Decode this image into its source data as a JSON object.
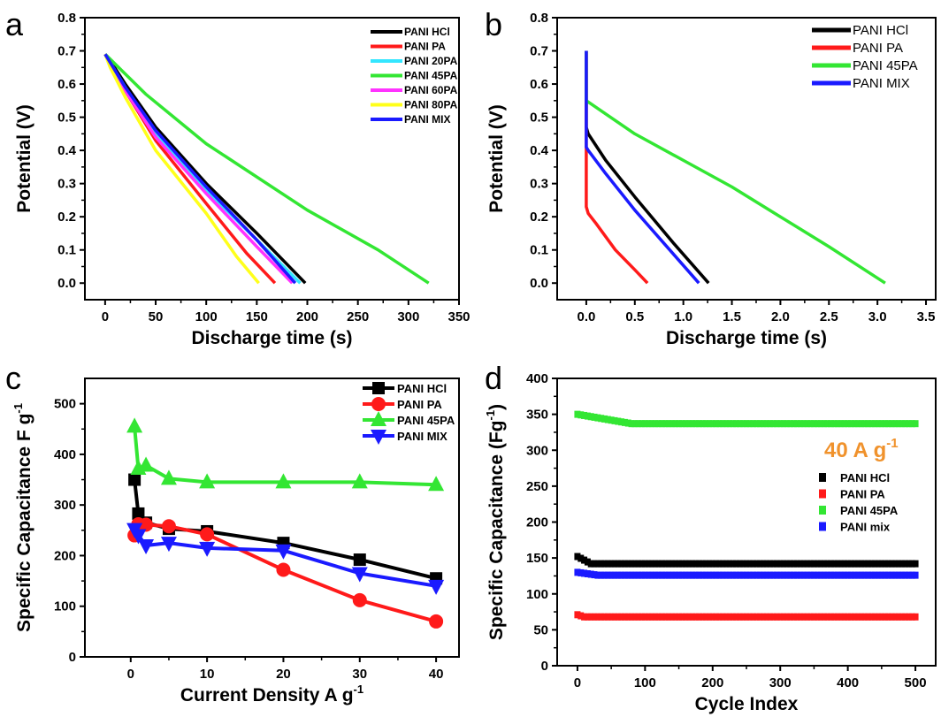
{
  "panel_labels": [
    "a",
    "b",
    "c",
    "d"
  ],
  "colors": {
    "PANI HCl": "#000000",
    "PANI PA": "#ff1a1a",
    "PANI 20PA": "#33e6ff",
    "PANI 45PA": "#33e633",
    "PANI 60PA": "#ff33ff",
    "PANI 80PA": "#ffff1a",
    "PANI MIX": "#1a1aff",
    "annotation": "#f0922c"
  },
  "chart_data": [
    {
      "id": "a",
      "type": "line",
      "xlabel": "Discharge time (s)",
      "ylabel": "Potential (V)",
      "xlim": [
        -20,
        350
      ],
      "ylim": [
        -0.05,
        0.8
      ],
      "xticks": [
        0,
        50,
        100,
        150,
        200,
        250,
        300,
        350
      ],
      "yticks": [
        0.0,
        0.1,
        0.2,
        0.3,
        0.4,
        0.5,
        0.6,
        0.7,
        0.8
      ],
      "legend": "top-right",
      "series": [
        {
          "name": "PANI HCl",
          "x": [
            0,
            5,
            20,
            50,
            100,
            150,
            198
          ],
          "y": [
            0.69,
            0.67,
            0.6,
            0.47,
            0.3,
            0.15,
            0.0
          ]
        },
        {
          "name": "PANI PA",
          "x": [
            0,
            5,
            20,
            50,
            100,
            140,
            168
          ],
          "y": [
            0.69,
            0.66,
            0.58,
            0.43,
            0.24,
            0.09,
            0.0
          ]
        },
        {
          "name": "PANI 20PA",
          "x": [
            0,
            5,
            20,
            50,
            100,
            150,
            193
          ],
          "y": [
            0.69,
            0.665,
            0.59,
            0.45,
            0.28,
            0.13,
            0.0
          ]
        },
        {
          "name": "PANI 45PA",
          "x": [
            0,
            10,
            40,
            100,
            200,
            270,
            320
          ],
          "y": [
            0.69,
            0.66,
            0.57,
            0.42,
            0.22,
            0.1,
            0.0
          ]
        },
        {
          "name": "PANI 60PA",
          "x": [
            0,
            5,
            20,
            50,
            100,
            150,
            185
          ],
          "y": [
            0.69,
            0.66,
            0.58,
            0.44,
            0.27,
            0.11,
            0.0
          ]
        },
        {
          "name": "PANI 80PA",
          "x": [
            0,
            5,
            20,
            50,
            100,
            130,
            152
          ],
          "y": [
            0.69,
            0.65,
            0.56,
            0.4,
            0.21,
            0.08,
            0.0
          ]
        },
        {
          "name": "PANI MIX",
          "x": [
            0,
            5,
            20,
            50,
            100,
            150,
            188
          ],
          "y": [
            0.69,
            0.665,
            0.59,
            0.46,
            0.29,
            0.13,
            0.0
          ]
        }
      ],
      "legend_labels": [
        "PANI HCl",
        "PANI PA",
        "PANI 20PA",
        "PANI 45PA",
        "PANI 60PA",
        "PANI 80PA",
        "PANI MIX"
      ]
    },
    {
      "id": "b",
      "type": "line",
      "xlabel": "Discharge time (s)",
      "ylabel": "Potential (V)",
      "xlim": [
        -0.3,
        3.6
      ],
      "ylim": [
        -0.05,
        0.8
      ],
      "xticks": [
        0.0,
        0.5,
        1.0,
        1.5,
        2.0,
        2.5,
        3.0,
        3.5
      ],
      "yticks": [
        0.0,
        0.1,
        0.2,
        0.3,
        0.4,
        0.5,
        0.6,
        0.7,
        0.8
      ],
      "legend": "top-right",
      "series": [
        {
          "name": "PANI HCl",
          "x": [
            0,
            0,
            0.02,
            0.2,
            0.5,
            0.9,
            1.26
          ],
          "y": [
            0.7,
            0.47,
            0.45,
            0.37,
            0.26,
            0.12,
            0.0
          ]
        },
        {
          "name": "PANI PA",
          "x": [
            0,
            0,
            0.02,
            0.1,
            0.3,
            0.5,
            0.63
          ],
          "y": [
            0.7,
            0.23,
            0.21,
            0.18,
            0.1,
            0.04,
            0.0
          ]
        },
        {
          "name": "PANI 45PA",
          "x": [
            0,
            0,
            0.05,
            0.5,
            1.0,
            1.5,
            2.0,
            2.5,
            3.08
          ],
          "y": [
            0.7,
            0.55,
            0.54,
            0.45,
            0.37,
            0.29,
            0.2,
            0.11,
            0.0
          ]
        },
        {
          "name": "PANI MIX",
          "x": [
            0,
            0,
            0.02,
            0.2,
            0.5,
            0.8,
            1.16
          ],
          "y": [
            0.7,
            0.41,
            0.4,
            0.33,
            0.22,
            0.12,
            0.0
          ]
        }
      ],
      "legend_labels": [
        "PANI HCl",
        "PANI PA",
        "PANI 45PA",
        "PANI MIX"
      ]
    },
    {
      "id": "c",
      "type": "line",
      "xlabel": "Current Density A g",
      "xlabel_sup": "-1",
      "ylabel": "Specific Capacitance F g",
      "ylabel_sup": "-1",
      "xlim": [
        -6,
        43
      ],
      "ylim": [
        0,
        550
      ],
      "xticks": [
        0,
        10,
        20,
        30,
        40
      ],
      "yticks": [
        0,
        100,
        200,
        300,
        400,
        500
      ],
      "legend": "top-right",
      "markers": {
        "PANI HCl": "square",
        "PANI PA": "circle",
        "PANI 45PA": "triangle-up",
        "PANI MIX": "triangle-down"
      },
      "series": [
        {
          "name": "PANI HCl",
          "x": [
            0.5,
            1,
            2,
            5,
            10,
            20,
            30,
            40
          ],
          "y": [
            350,
            283,
            265,
            253,
            248,
            225,
            192,
            155
          ]
        },
        {
          "name": "PANI PA",
          "x": [
            0.5,
            1,
            2,
            5,
            10,
            20,
            30,
            40
          ],
          "y": [
            240,
            262,
            261,
            258,
            242,
            172,
            112,
            70
          ]
        },
        {
          "name": "PANI 45PA",
          "x": [
            0.5,
            1,
            2,
            5,
            10,
            20,
            30,
            40
          ],
          "y": [
            455,
            372,
            378,
            352,
            345,
            345,
            345,
            340
          ]
        },
        {
          "name": "PANI MIX",
          "x": [
            0.5,
            1,
            2,
            5,
            10,
            20,
            30,
            40
          ],
          "y": [
            252,
            240,
            220,
            225,
            215,
            210,
            165,
            140
          ]
        }
      ],
      "legend_labels": [
        "PANI HCl",
        "PANI PA",
        "PANI 45PA",
        "PANI MIX"
      ]
    },
    {
      "id": "d",
      "type": "scatter",
      "xlabel": "Cycle Index",
      "ylabel": "Specific Capacitance (Fg",
      "ylabel_sup": "-1",
      "ylabel_tail": ")",
      "xlim": [
        -30,
        530
      ],
      "ylim": [
        0,
        400
      ],
      "xticks": [
        0,
        100,
        200,
        300,
        400,
        500
      ],
      "yticks": [
        0,
        50,
        100,
        150,
        200,
        250,
        300,
        350,
        400
      ],
      "annotation": "40 A g",
      "annotation_sup": "-1",
      "legend": "right",
      "series": [
        {
          "name": "PANI HCl",
          "start": 152,
          "settle": 142,
          "settle_at": 20
        },
        {
          "name": "PANI PA",
          "start": 71,
          "settle": 68,
          "settle_at": 10
        },
        {
          "name": "PANI 45PA",
          "start": 350,
          "settle": 337,
          "settle_at": 80
        },
        {
          "name": "PANI mix",
          "start": 130,
          "settle": 126,
          "settle_at": 30
        }
      ],
      "legend_labels": [
        "PANI HCl",
        "PANI PA",
        "PANI 45PA",
        "PANI mix"
      ]
    }
  ]
}
